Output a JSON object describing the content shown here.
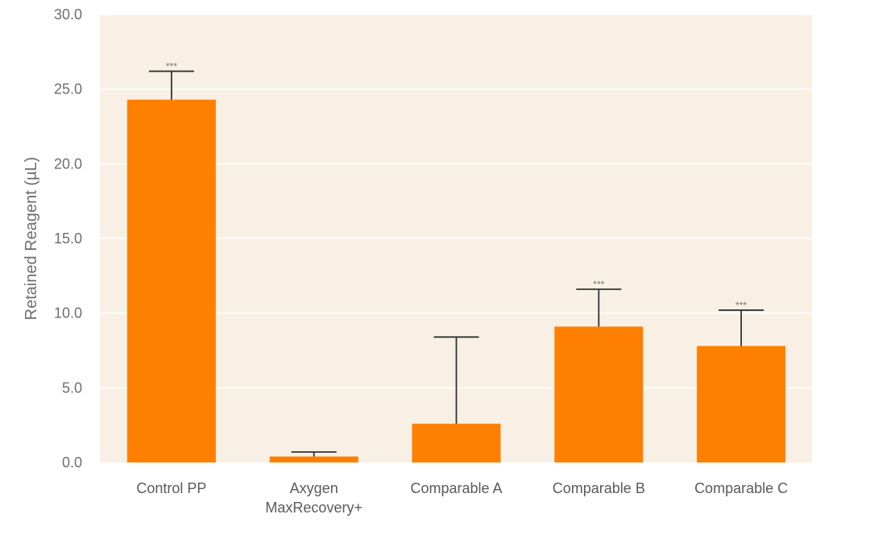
{
  "chart_data": {
    "type": "bar",
    "title": "",
    "xlabel": "",
    "ylabel": "Retained Reagent (µL)",
    "ylim": [
      0,
      30
    ],
    "yticks": [
      "0.0",
      "5.0",
      "10.0",
      "15.0",
      "20.0",
      "25.0",
      "30.0"
    ],
    "grid": true,
    "categories": [
      [
        "Control PP"
      ],
      [
        "Axygen",
        "MaxRecovery+"
      ],
      [
        "Comparable A"
      ],
      [
        "Comparable B"
      ],
      [
        "Comparable C"
      ]
    ],
    "values": [
      24.3,
      0.4,
      2.6,
      9.1,
      7.8
    ],
    "error_upper": [
      26.2,
      0.7,
      8.4,
      11.6,
      10.2
    ],
    "significance": [
      "***",
      "",
      "",
      "***",
      "***"
    ],
    "colors": {
      "bar": "#ff8000",
      "plot_bg": "#f8f0e4",
      "grid": "#ffffff",
      "error_bar": "#333333"
    }
  }
}
